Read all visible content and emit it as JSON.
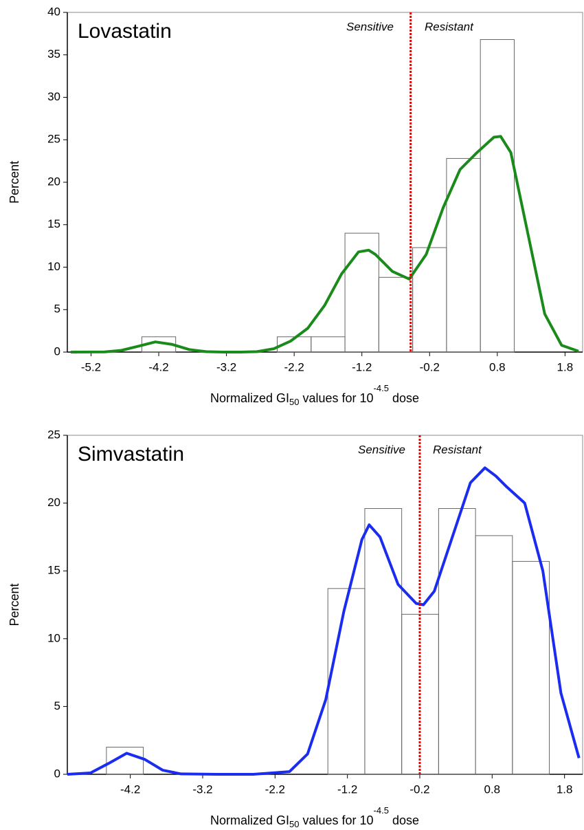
{
  "chart_data": [
    {
      "type": "histogram",
      "title": "Lovastatin",
      "ylabel": "Percent",
      "xlabel": [
        "Normalized GI",
        "50",
        " values for 10",
        "-4.5",
        " dose"
      ],
      "bins": [
        -4.45,
        -3.95,
        -3.45,
        -2.95,
        -2.45,
        -1.95,
        -1.45,
        -0.95,
        -0.45,
        0.05,
        0.55,
        1.05
      ],
      "values": [
        1.8,
        0,
        0,
        0,
        1.8,
        1.8,
        14,
        8.8,
        12.3,
        22.8,
        36.8
      ],
      "density": {
        "color": "#1a8a1a",
        "x": [
          -5.5,
          -5.0,
          -4.75,
          -4.5,
          -4.25,
          -4.0,
          -3.75,
          -3.5,
          -3.25,
          -3.0,
          -2.75,
          -2.5,
          -2.25,
          -2.0,
          -1.75,
          -1.5,
          -1.25,
          -1.1,
          -1.0,
          -0.75,
          -0.5,
          -0.25,
          0,
          0.25,
          0.5,
          0.75,
          0.85,
          1.0,
          1.25,
          1.5,
          1.75,
          2.0
        ],
        "values": [
          0,
          0.02,
          0.2,
          0.7,
          1.2,
          0.9,
          0.3,
          0.05,
          0,
          0,
          0.05,
          0.4,
          1.3,
          2.8,
          5.5,
          9.2,
          11.8,
          12,
          11.5,
          9.5,
          8.6,
          11.5,
          17,
          21.5,
          23.5,
          25.3,
          25.4,
          23.5,
          14,
          4.5,
          0.8,
          0.1
        ]
      },
      "cutoff": {
        "value": -0.48,
        "color": "#e00000",
        "left_label": "Sensitive",
        "right_label": "Resistant"
      },
      "xlim": [
        -5.55,
        2.06
      ],
      "xticks": [
        -5.2,
        -4.2,
        -3.2,
        -2.2,
        -1.2,
        -0.2,
        0.8,
        1.8
      ],
      "ylim": [
        0,
        40
      ],
      "yticks": [
        0,
        5,
        10,
        15,
        20,
        25,
        30,
        35,
        40
      ]
    },
    {
      "type": "histogram",
      "title": "Simvastatin",
      "ylabel": "Percent",
      "xlabel": [
        "Normalized GI",
        "50",
        " values for 10",
        "-4.5",
        " dose"
      ],
      "bins": [
        -4.53,
        -4.02,
        -3.51,
        -3.0,
        -2.49,
        -1.98,
        -1.47,
        -0.96,
        -0.45,
        0.06,
        0.57,
        1.08,
        1.59
      ],
      "values": [
        2,
        0,
        0,
        0,
        0,
        0,
        13.7,
        19.6,
        11.8,
        19.6,
        17.6,
        15.7
      ],
      "density": {
        "color": "#1a2cf0",
        "x": [
          -5.07,
          -4.75,
          -4.5,
          -4.25,
          -4.0,
          -3.75,
          -3.5,
          -3.0,
          -2.5,
          -2.0,
          -1.75,
          -1.5,
          -1.25,
          -1.0,
          -0.9,
          -0.75,
          -0.5,
          -0.25,
          -0.15,
          0,
          0.25,
          0.5,
          0.7,
          0.85,
          1.0,
          1.25,
          1.5,
          1.75,
          2.0
        ],
        "values": [
          0,
          0.1,
          0.8,
          1.55,
          1.1,
          0.3,
          0.03,
          0,
          0,
          0.2,
          1.5,
          5.5,
          12,
          17.3,
          18.4,
          17.5,
          14,
          12.6,
          12.5,
          13.5,
          17.5,
          21.5,
          22.6,
          22,
          21.2,
          20,
          15,
          6,
          1.2
        ]
      },
      "cutoff": {
        "value": -0.2,
        "color": "#e00000",
        "left_label": "Sensitive",
        "right_label": "Resistant"
      },
      "xlim": [
        -5.07,
        2.05
      ],
      "xticks": [
        -4.2,
        -3.2,
        -2.2,
        -1.2,
        -0.2,
        0.8,
        1.8
      ],
      "ylim": [
        0,
        25
      ],
      "yticks": [
        0,
        5,
        10,
        15,
        20,
        25
      ]
    }
  ]
}
